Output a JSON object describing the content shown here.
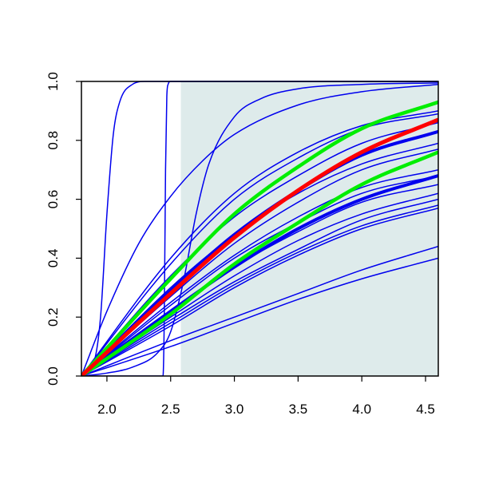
{
  "chart_data": {
    "type": "line",
    "title": "",
    "xlabel": "",
    "ylabel": "",
    "xlim": [
      1.8,
      4.6
    ],
    "ylim": [
      0.0,
      1.0
    ],
    "x_ticks": [
      2.0,
      2.5,
      3.0,
      3.5,
      4.0,
      4.5
    ],
    "x_tick_labels": [
      "2.0",
      "2.5",
      "3.0",
      "3.5",
      "4.0",
      "4.5"
    ],
    "y_ticks": [
      0.0,
      0.2,
      0.4,
      0.6,
      0.8,
      1.0
    ],
    "y_tick_labels": [
      "0.0",
      "0.2",
      "0.4",
      "0.6",
      "0.8",
      "1.0"
    ],
    "grid": false,
    "shaded_region": {
      "x_from": 2.58,
      "x_to": 4.6,
      "color": "#deebeb"
    },
    "colors": {
      "blue": "#0000ee",
      "green": "#00ee00",
      "red": "#ff0000",
      "axis": "#000000"
    },
    "series": [
      {
        "color": "blue",
        "width": 1.5,
        "x": [
          1.8,
          1.9,
          1.95,
          2.0,
          2.05,
          2.1,
          2.2,
          2.3,
          2.4,
          4.6
        ],
        "y": [
          0.0,
          0.05,
          0.2,
          0.55,
          0.82,
          0.93,
          0.99,
          1.0,
          1.0,
          1.0
        ]
      },
      {
        "color": "blue",
        "width": 1.5,
        "x": [
          1.8,
          2.44,
          2.45,
          2.46,
          2.47,
          2.48,
          2.5,
          4.6
        ],
        "y": [
          0.0,
          0.0,
          0.2,
          0.7,
          0.95,
          0.99,
          1.0,
          1.0
        ]
      },
      {
        "color": "blue",
        "width": 1.5,
        "x": [
          1.8,
          2.0,
          2.2,
          2.4,
          2.5,
          2.6,
          2.7,
          2.8,
          3.0,
          3.2,
          3.5,
          4.0,
          4.6
        ],
        "y": [
          0.0,
          0.01,
          0.03,
          0.08,
          0.15,
          0.32,
          0.55,
          0.72,
          0.88,
          0.94,
          0.975,
          0.99,
          0.995
        ]
      },
      {
        "color": "blue",
        "width": 1.5,
        "x": [
          1.8,
          2.0,
          2.25,
          2.5,
          2.75,
          3.0,
          3.5,
          4.0,
          4.6
        ],
        "y": [
          0.0,
          0.22,
          0.45,
          0.61,
          0.73,
          0.82,
          0.92,
          0.965,
          0.99
        ]
      },
      {
        "color": "blue",
        "width": 1.5,
        "x": [
          1.8,
          2.5,
          3.0,
          3.5,
          4.0,
          4.6
        ],
        "y": [
          0.0,
          0.4,
          0.62,
          0.76,
          0.85,
          0.9
        ]
      },
      {
        "color": "blue",
        "width": 1.5,
        "x": [
          1.8,
          2.5,
          3.0,
          3.5,
          4.0,
          4.6
        ],
        "y": [
          0.0,
          0.38,
          0.6,
          0.74,
          0.84,
          0.89
        ]
      },
      {
        "color": "blue",
        "width": 1.5,
        "x": [
          1.8,
          2.5,
          3.0,
          3.5,
          4.0,
          4.6
        ],
        "y": [
          0.0,
          0.34,
          0.54,
          0.68,
          0.79,
          0.86
        ]
      },
      {
        "color": "blue",
        "width": 1.5,
        "x": [
          1.8,
          2.5,
          3.0,
          3.5,
          4.0,
          4.6
        ],
        "y": [
          0.0,
          0.3,
          0.48,
          0.62,
          0.72,
          0.79
        ]
      },
      {
        "color": "blue",
        "width": 1.5,
        "x": [
          1.8,
          2.5,
          3.0,
          3.5,
          4.0,
          4.6
        ],
        "y": [
          0.0,
          0.27,
          0.45,
          0.59,
          0.7,
          0.77
        ]
      },
      {
        "color": "blue",
        "width": 1.5,
        "x": [
          1.8,
          2.5,
          3.0,
          3.5,
          4.0,
          4.6
        ],
        "y": [
          0.0,
          0.25,
          0.41,
          0.54,
          0.64,
          0.7
        ]
      },
      {
        "color": "blue",
        "width": 1.5,
        "x": [
          1.8,
          2.5,
          3.0,
          3.5,
          4.0,
          4.6
        ],
        "y": [
          0.0,
          0.24,
          0.4,
          0.52,
          0.62,
          0.68
        ]
      },
      {
        "color": "blue",
        "width": 1.5,
        "x": [
          1.8,
          2.5,
          3.0,
          3.5,
          4.0,
          4.6
        ],
        "y": [
          0.0,
          0.22,
          0.37,
          0.49,
          0.59,
          0.65
        ]
      },
      {
        "color": "blue",
        "width": 1.5,
        "x": [
          1.8,
          2.5,
          3.0,
          3.5,
          4.0,
          4.6
        ],
        "y": [
          0.0,
          0.2,
          0.34,
          0.46,
          0.55,
          0.62
        ]
      },
      {
        "color": "blue",
        "width": 1.5,
        "x": [
          1.8,
          2.5,
          3.0,
          3.5,
          4.0,
          4.6
        ],
        "y": [
          0.0,
          0.19,
          0.32,
          0.43,
          0.53,
          0.6
        ]
      },
      {
        "color": "blue",
        "width": 1.5,
        "x": [
          1.8,
          2.5,
          3.0,
          3.5,
          4.0,
          4.6
        ],
        "y": [
          0.0,
          0.18,
          0.31,
          0.42,
          0.51,
          0.58
        ]
      },
      {
        "color": "blue",
        "width": 1.5,
        "x": [
          1.8,
          2.5,
          3.0,
          3.5,
          4.0,
          4.6
        ],
        "y": [
          0.0,
          0.17,
          0.3,
          0.41,
          0.5,
          0.57
        ]
      },
      {
        "color": "blue",
        "width": 1.5,
        "x": [
          1.8,
          2.5,
          3.0,
          3.5,
          4.0,
          4.6
        ],
        "y": [
          0.0,
          0.12,
          0.2,
          0.28,
          0.36,
          0.44
        ]
      },
      {
        "color": "blue",
        "width": 1.5,
        "x": [
          1.8,
          2.5,
          3.0,
          3.5,
          4.0,
          4.6
        ],
        "y": [
          0.0,
          0.1,
          0.18,
          0.26,
          0.33,
          0.4
        ]
      },
      {
        "color": "blue",
        "width": 4,
        "x": [
          1.8,
          2.5,
          3.0,
          3.5,
          4.0,
          4.6
        ],
        "y": [
          0.0,
          0.29,
          0.48,
          0.63,
          0.75,
          0.83
        ]
      },
      {
        "color": "blue",
        "width": 4,
        "x": [
          1.8,
          2.5,
          3.0,
          3.5,
          4.0,
          4.6
        ],
        "y": [
          0.0,
          0.22,
          0.37,
          0.5,
          0.6,
          0.68
        ]
      },
      {
        "color": "green",
        "width": 4.5,
        "x": [
          1.8,
          2.5,
          3.0,
          3.5,
          4.0,
          4.6
        ],
        "y": [
          0.0,
          0.33,
          0.55,
          0.71,
          0.84,
          0.93
        ]
      },
      {
        "color": "green",
        "width": 4.5,
        "x": [
          1.8,
          2.5,
          3.0,
          3.5,
          4.0,
          4.6
        ],
        "y": [
          0.0,
          0.21,
          0.38,
          0.52,
          0.65,
          0.76
        ]
      },
      {
        "color": "red",
        "width": 5,
        "x": [
          1.8,
          2.5,
          3.0,
          3.5,
          4.0,
          4.6
        ],
        "y": [
          0.0,
          0.28,
          0.47,
          0.63,
          0.76,
          0.87
        ]
      }
    ]
  }
}
